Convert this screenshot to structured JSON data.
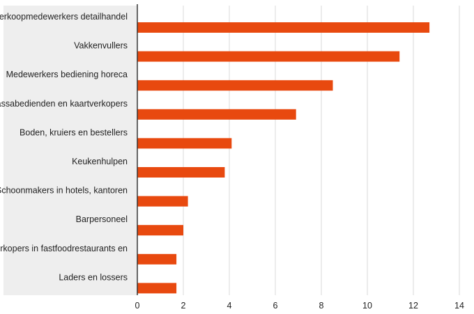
{
  "chart_data": {
    "type": "bar",
    "orientation": "horizontal",
    "title": "",
    "xlabel": "",
    "ylabel": "",
    "categories": [
      "Verkoopmedewerkers detailhandel",
      "Vakkenvullers",
      "Medewerkers bediening horeca",
      "Kassabedienden en kaartverkopers",
      "Boden, kruiers en bestellers",
      "Keukenhulpen",
      "Schoonmakers in hotels, kantoren",
      "Barpersoneel",
      "Verkopers in fastfoodrestaurants en",
      "Laders en lossers"
    ],
    "values": [
      12.7,
      11.4,
      8.5,
      6.9,
      4.1,
      3.8,
      2.2,
      2.0,
      1.7,
      1.7
    ],
    "xlim": [
      0,
      14
    ],
    "xticks": [
      0,
      2,
      4,
      6,
      8,
      10,
      12,
      14
    ],
    "xtick_labels": [
      "0",
      "2",
      "4",
      "6",
      "8",
      "10",
      "12",
      "14"
    ],
    "grid": true,
    "legend": "none",
    "colors": {
      "bar": "#e8490f",
      "grid": "#d9d9d9",
      "label_band": "#eeeeee",
      "axis": "#333333"
    }
  }
}
